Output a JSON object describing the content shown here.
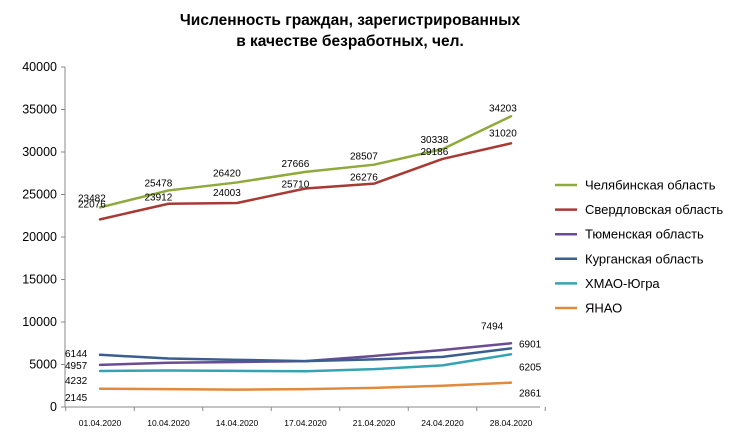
{
  "chart_data": {
    "type": "line",
    "title_line1": "Численность граждан, зарегистрированных",
    "title_line2": "в качестве безработных, чел.",
    "categories": [
      "01.04.2020",
      "10.04.2020",
      "14.04.2020",
      "17.04.2020",
      "21.04.2020",
      "24.04.2020",
      "28.04.2020"
    ],
    "ylim": [
      0,
      40000
    ],
    "yticks": [
      "0",
      "5000",
      "10000",
      "15000",
      "20000",
      "25000",
      "30000",
      "35000",
      "40000"
    ],
    "grid": false,
    "legend_position": "right",
    "series": [
      {
        "name": "Челябинская область",
        "color": "#8faa3c",
        "values": [
          23482,
          25478,
          26420,
          27666,
          28507,
          30338,
          34203
        ],
        "labels": [
          "23482",
          "25478",
          "26420",
          "27666",
          "28507",
          "30338",
          "34203"
        ],
        "label_index": [
          0,
          1,
          2,
          3,
          4,
          5,
          6
        ]
      },
      {
        "name": "Свердловская область",
        "color": "#a83a36",
        "values": [
          22076,
          23912,
          24003,
          25710,
          26276,
          29186,
          31020
        ],
        "labels": [
          "22076",
          "23912",
          "24003",
          "25710",
          "26276",
          "29186",
          "31020"
        ],
        "label_index": [
          0,
          1,
          2,
          3,
          4,
          5,
          6
        ]
      },
      {
        "name": "Тюменская область",
        "color": "#6a4c93",
        "values": [
          4957,
          5200,
          5300,
          5400,
          6000,
          6700,
          7494
        ],
        "labels": [
          "4957",
          "7494"
        ],
        "label_index": [
          0,
          6
        ]
      },
      {
        "name": "Курганская область",
        "color": "#3a5f8f",
        "values": [
          6144,
          5700,
          5550,
          5400,
          5600,
          5900,
          6901
        ],
        "labels": [
          "6144",
          "6901"
        ],
        "label_index": [
          0,
          6
        ]
      },
      {
        "name": "ХМАО-Югра",
        "color": "#35a3b3",
        "values": [
          4232,
          4300,
          4250,
          4200,
          4450,
          4900,
          6205
        ],
        "labels": [
          "4232",
          "6205"
        ],
        "label_index": [
          0,
          6
        ]
      },
      {
        "name": "ЯНАО",
        "color": "#e08a3c",
        "values": [
          2145,
          2100,
          2050,
          2100,
          2250,
          2500,
          2861
        ],
        "labels": [
          "2145",
          "2861"
        ],
        "label_index": [
          0,
          6
        ]
      }
    ]
  }
}
